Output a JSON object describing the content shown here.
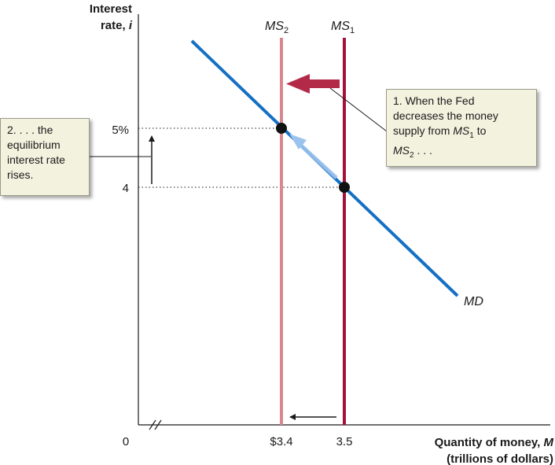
{
  "diagram": {
    "y_axis_title_line1": "Interest",
    "y_axis_title_line2": "rate, i",
    "y_axis_title_line2_plain": "rate, ",
    "y_axis_title_line2_var": "i",
    "x_axis_title_line1_plain": "Quantity of money, ",
    "x_axis_title_line1_var": "M",
    "x_axis_title_line2": "(trillions of dollars)",
    "origin_label": "0",
    "y_ticks": [
      "5%",
      "4"
    ],
    "x_ticks": [
      "$3.4",
      "3.5"
    ],
    "curves": {
      "ms2": {
        "base": "MS",
        "sub": "2",
        "color": "#d9868e"
      },
      "ms1": {
        "base": "MS",
        "sub": "1",
        "color": "#a3123a"
      },
      "md": {
        "label": "MD",
        "color": "#1570c4"
      }
    },
    "callouts": {
      "fed": {
        "line1": "1. When the Fed",
        "line2": "decreases the money",
        "line3_plain": "supply from ",
        "ms1_base": "MS",
        "ms1_sub": "1",
        "line3_to": " to",
        "ms2_base": "MS",
        "ms2_sub": "2",
        "line4_tail": " . . ."
      },
      "rate": {
        "line1": "2. . . . the",
        "line2": "equilibrium",
        "line3": "interest rate",
        "line4": "rises."
      }
    },
    "colors": {
      "axis": "#1a1a1a",
      "callout_bg": "#f3f2df",
      "shift_arrow": "#b32a48",
      "movement_arrow": "#9cc3ee"
    }
  }
}
